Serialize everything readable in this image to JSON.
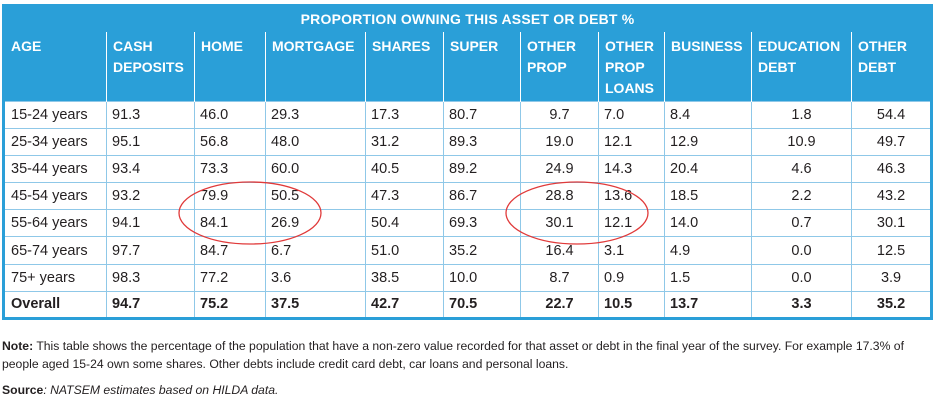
{
  "table": {
    "title": "PROPORTION OWNING THIS ASSET OR DEBT %",
    "headers": [
      "AGE",
      "CASH\nDEPOSITS",
      "HOME",
      "MORTGAGE",
      "SHARES",
      "SUPER",
      "OTHER\nPROP",
      "OTHER\nPROP\nLOANS",
      "BUSINESS",
      "EDUCATION\nDEBT",
      "OTHER\nDEBT"
    ],
    "rows": [
      [
        "15-24 years",
        "91.3",
        "46.0",
        "29.3",
        "17.3",
        "80.7",
        "9.7",
        "7.0",
        "8.4",
        "1.8",
        "54.4"
      ],
      [
        "25-34 years",
        "95.1",
        "56.8",
        "48.0",
        "31.2",
        "89.3",
        "19.0",
        "12.1",
        "12.9",
        "10.9",
        "49.7"
      ],
      [
        "35-44 years",
        "93.4",
        "73.3",
        "60.0",
        "40.5",
        "89.2",
        "24.9",
        "14.3",
        "20.4",
        "4.6",
        "46.3"
      ],
      [
        "45-54 years",
        "93.2",
        "79.9",
        "50.5",
        "47.3",
        "86.7",
        "28.8",
        "13.6",
        "18.5",
        "2.2",
        "43.2"
      ],
      [
        "55-64 years",
        "94.1",
        "84.1",
        "26.9",
        "50.4",
        "69.3",
        "30.1",
        "12.1",
        "14.0",
        "0.7",
        "30.1"
      ],
      [
        "65-74 years",
        "97.7",
        "84.7",
        "6.7",
        "51.0",
        "35.2",
        "16.4",
        "3.1",
        "4.9",
        "0.0",
        "12.5"
      ],
      [
        "75+ years",
        "98.3",
        "77.2",
        "3.6",
        "38.5",
        "10.0",
        "8.7",
        "0.9",
        "1.5",
        "0.0",
        "3.9"
      ],
      [
        "Overall",
        "94.7",
        "75.2",
        "37.5",
        "42.7",
        "70.5",
        "22.7",
        "10.5",
        "13.7",
        "3.3",
        "35.2"
      ]
    ],
    "cell_align": [
      "left",
      "left",
      "left",
      "left",
      "left",
      "left",
      "center",
      "left",
      "left",
      "center",
      "center"
    ]
  },
  "note": {
    "label": "Note:",
    "text": " This table shows the percentage of the population that have a non-zero value recorded for that asset or debt in the final year of the survey. For example 17.3% of people aged 15-24 own some shares. Other debts include credit card debt, car loans and personal loans."
  },
  "source": {
    "label": "Source",
    "text": ": NATSEM estimates based on HILDA data."
  },
  "colors": {
    "header_bg": "#2a9fd8",
    "grid_line": "#8fc8e8",
    "annotation": "#e03a3a"
  }
}
